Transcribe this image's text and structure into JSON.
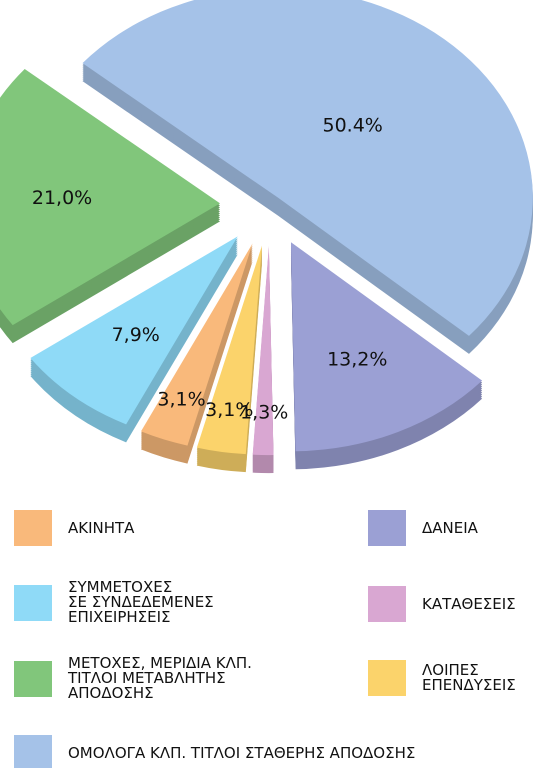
{
  "chart_data": {
    "type": "pie",
    "categories": [
      "ΟΜΟΛΟΓΑ ΚΛΠ. ΤΙΤΛΟΙ ΣΤΑΘΕΡΗΣ ΑΠΟΔΟΣΗΣ",
      "ΔΑΝΕΙΑ",
      "ΚΑΤΑΘΕΣΕΙΣ",
      "ΛΟΙΠΕΣ\nΕΠΕΝΔΥΣΕΙΣ",
      "ΑΚΙΝΗΤΑ",
      "ΣΥΜΜΕΤΟΧΕΣ\nΣΕ ΣΥΝΔΕΔΕΜΕΝΕΣ\nΕΠΙΧΕΙΡΗΣΕΙΣ",
      "ΜΕΤΟΧΕΣ, ΜΕΡΙΔΙΑ ΚΛΠ.\nΤΙΤΛΟΙ ΜΕΤΑΒΛΗΤΗΣ\nΑΠΟΔΟΣΗΣ"
    ],
    "values": [
      50.4,
      13.2,
      1.3,
      3.1,
      3.1,
      7.9,
      21.0
    ],
    "value_labels": [
      "50.4%",
      "13,2%",
      "1,3%",
      "3,1%",
      "3,1%",
      "7,9%",
      "21,0%"
    ],
    "colors": [
      "#a5c2e8",
      "#9ba0d4",
      "#d9a7d2",
      "#fbd36b",
      "#f9b97b",
      "#8fdaf7",
      "#81c67b"
    ],
    "legend": "bottom"
  }
}
